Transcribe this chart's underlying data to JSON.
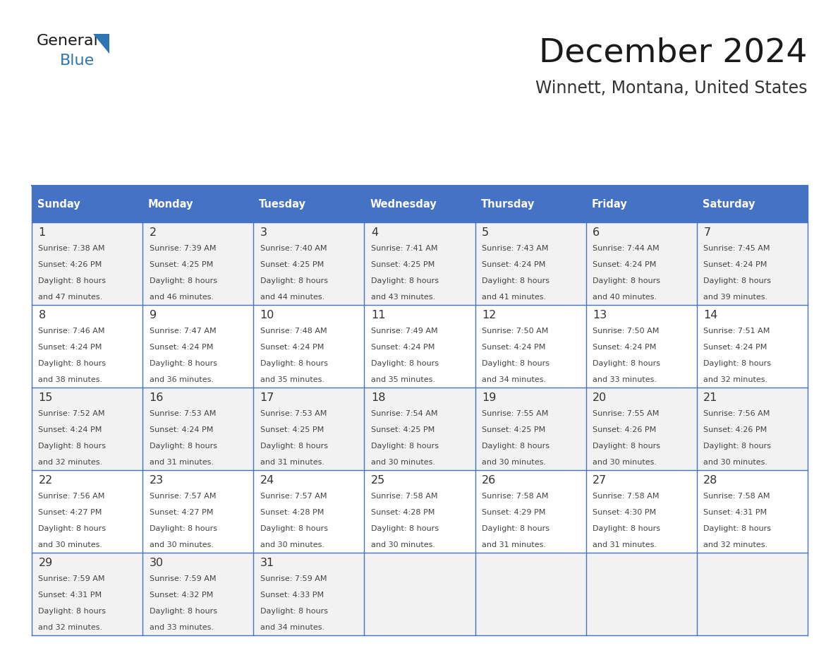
{
  "title": "December 2024",
  "subtitle": "Winnett, Montana, United States",
  "days_of_week": [
    "Sunday",
    "Monday",
    "Tuesday",
    "Wednesday",
    "Thursday",
    "Friday",
    "Saturday"
  ],
  "header_bg": "#4472C4",
  "header_text": "#FFFFFF",
  "row_bg_odd": "#F2F2F2",
  "row_bg_even": "#FFFFFF",
  "day_number_color": "#333333",
  "text_color": "#444444",
  "border_color": "#4472C4",
  "title_color": "#1a1a1a",
  "subtitle_color": "#333333",
  "logo_color1": "#1a1a1a",
  "logo_color2": "#2E75B6",
  "calendar": [
    [
      {
        "day": 1,
        "sunrise": "7:38 AM",
        "sunset": "4:26 PM",
        "daylight": "8 hours and 47 minutes."
      },
      {
        "day": 2,
        "sunrise": "7:39 AM",
        "sunset": "4:25 PM",
        "daylight": "8 hours and 46 minutes."
      },
      {
        "day": 3,
        "sunrise": "7:40 AM",
        "sunset": "4:25 PM",
        "daylight": "8 hours and 44 minutes."
      },
      {
        "day": 4,
        "sunrise": "7:41 AM",
        "sunset": "4:25 PM",
        "daylight": "8 hours and 43 minutes."
      },
      {
        "day": 5,
        "sunrise": "7:43 AM",
        "sunset": "4:24 PM",
        "daylight": "8 hours and 41 minutes."
      },
      {
        "day": 6,
        "sunrise": "7:44 AM",
        "sunset": "4:24 PM",
        "daylight": "8 hours and 40 minutes."
      },
      {
        "day": 7,
        "sunrise": "7:45 AM",
        "sunset": "4:24 PM",
        "daylight": "8 hours and 39 minutes."
      }
    ],
    [
      {
        "day": 8,
        "sunrise": "7:46 AM",
        "sunset": "4:24 PM",
        "daylight": "8 hours and 38 minutes."
      },
      {
        "day": 9,
        "sunrise": "7:47 AM",
        "sunset": "4:24 PM",
        "daylight": "8 hours and 36 minutes."
      },
      {
        "day": 10,
        "sunrise": "7:48 AM",
        "sunset": "4:24 PM",
        "daylight": "8 hours and 35 minutes."
      },
      {
        "day": 11,
        "sunrise": "7:49 AM",
        "sunset": "4:24 PM",
        "daylight": "8 hours and 35 minutes."
      },
      {
        "day": 12,
        "sunrise": "7:50 AM",
        "sunset": "4:24 PM",
        "daylight": "8 hours and 34 minutes."
      },
      {
        "day": 13,
        "sunrise": "7:50 AM",
        "sunset": "4:24 PM",
        "daylight": "8 hours and 33 minutes."
      },
      {
        "day": 14,
        "sunrise": "7:51 AM",
        "sunset": "4:24 PM",
        "daylight": "8 hours and 32 minutes."
      }
    ],
    [
      {
        "day": 15,
        "sunrise": "7:52 AM",
        "sunset": "4:24 PM",
        "daylight": "8 hours and 32 minutes."
      },
      {
        "day": 16,
        "sunrise": "7:53 AM",
        "sunset": "4:24 PM",
        "daylight": "8 hours and 31 minutes."
      },
      {
        "day": 17,
        "sunrise": "7:53 AM",
        "sunset": "4:25 PM",
        "daylight": "8 hours and 31 minutes."
      },
      {
        "day": 18,
        "sunrise": "7:54 AM",
        "sunset": "4:25 PM",
        "daylight": "8 hours and 30 minutes."
      },
      {
        "day": 19,
        "sunrise": "7:55 AM",
        "sunset": "4:25 PM",
        "daylight": "8 hours and 30 minutes."
      },
      {
        "day": 20,
        "sunrise": "7:55 AM",
        "sunset": "4:26 PM",
        "daylight": "8 hours and 30 minutes."
      },
      {
        "day": 21,
        "sunrise": "7:56 AM",
        "sunset": "4:26 PM",
        "daylight": "8 hours and 30 minutes."
      }
    ],
    [
      {
        "day": 22,
        "sunrise": "7:56 AM",
        "sunset": "4:27 PM",
        "daylight": "8 hours and 30 minutes."
      },
      {
        "day": 23,
        "sunrise": "7:57 AM",
        "sunset": "4:27 PM",
        "daylight": "8 hours and 30 minutes."
      },
      {
        "day": 24,
        "sunrise": "7:57 AM",
        "sunset": "4:28 PM",
        "daylight": "8 hours and 30 minutes."
      },
      {
        "day": 25,
        "sunrise": "7:58 AM",
        "sunset": "4:28 PM",
        "daylight": "8 hours and 30 minutes."
      },
      {
        "day": 26,
        "sunrise": "7:58 AM",
        "sunset": "4:29 PM",
        "daylight": "8 hours and 31 minutes."
      },
      {
        "day": 27,
        "sunrise": "7:58 AM",
        "sunset": "4:30 PM",
        "daylight": "8 hours and 31 minutes."
      },
      {
        "day": 28,
        "sunrise": "7:58 AM",
        "sunset": "4:31 PM",
        "daylight": "8 hours and 32 minutes."
      }
    ],
    [
      {
        "day": 29,
        "sunrise": "7:59 AM",
        "sunset": "4:31 PM",
        "daylight": "8 hours and 32 minutes."
      },
      {
        "day": 30,
        "sunrise": "7:59 AM",
        "sunset": "4:32 PM",
        "daylight": "8 hours and 33 minutes."
      },
      {
        "day": 31,
        "sunrise": "7:59 AM",
        "sunset": "4:33 PM",
        "daylight": "8 hours and 34 minutes."
      },
      null,
      null,
      null,
      null
    ]
  ]
}
